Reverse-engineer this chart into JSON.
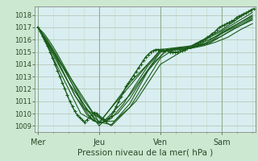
{
  "title": "",
  "xlabel": "Pression niveau de la mer( hPa )",
  "bg_color": "#cce8d0",
  "plot_bg_color": "#d8eef0",
  "grid_major_color": "#b8c8b8",
  "grid_minor_color": "#c8d8c8",
  "line_color": "#1a5c1a",
  "ylim": [
    1008.5,
    1018.7
  ],
  "xlim": [
    -0.05,
    3.55
  ],
  "yticks": [
    1009,
    1010,
    1011,
    1012,
    1013,
    1014,
    1015,
    1016,
    1017,
    1018
  ],
  "xtick_labels": [
    "Mer",
    "Jeu",
    "Ven",
    "Sam"
  ],
  "xtick_positions": [
    0,
    1,
    2,
    3
  ],
  "series": [
    [
      [
        0.0,
        1017.0
      ],
      [
        0.04,
        1016.7
      ],
      [
        0.08,
        1016.3
      ],
      [
        0.12,
        1015.9
      ],
      [
        0.16,
        1015.5
      ],
      [
        0.2,
        1015.0
      ],
      [
        0.24,
        1014.5
      ],
      [
        0.28,
        1014.0
      ],
      [
        0.32,
        1013.5
      ],
      [
        0.36,
        1013.0
      ],
      [
        0.4,
        1012.5
      ],
      [
        0.44,
        1012.0
      ],
      [
        0.48,
        1011.5
      ],
      [
        0.52,
        1011.0
      ],
      [
        0.56,
        1010.6
      ],
      [
        0.6,
        1010.2
      ],
      [
        0.64,
        1009.9
      ],
      [
        0.68,
        1009.7
      ],
      [
        0.72,
        1009.5
      ],
      [
        0.76,
        1009.3
      ],
      [
        0.8,
        1009.5
      ],
      [
        0.84,
        1009.7
      ],
      [
        0.88,
        1009.9
      ],
      [
        0.92,
        1010.1
      ],
      [
        0.96,
        1010.0
      ],
      [
        1.0,
        1009.8
      ],
      [
        1.04,
        1009.6
      ],
      [
        1.08,
        1009.5
      ],
      [
        1.12,
        1009.4
      ],
      [
        1.16,
        1009.6
      ],
      [
        1.2,
        1009.8
      ],
      [
        1.24,
        1010.2
      ],
      [
        1.28,
        1010.6
      ],
      [
        1.32,
        1011.0
      ],
      [
        1.36,
        1011.4
      ],
      [
        1.4,
        1011.8
      ],
      [
        1.44,
        1012.2
      ],
      [
        1.48,
        1012.5
      ],
      [
        1.52,
        1012.8
      ],
      [
        1.56,
        1013.1
      ],
      [
        1.6,
        1013.4
      ],
      [
        1.64,
        1013.7
      ],
      [
        1.68,
        1014.0
      ],
      [
        1.72,
        1014.3
      ],
      [
        1.76,
        1014.6
      ],
      [
        1.8,
        1014.8
      ],
      [
        1.84,
        1015.0
      ],
      [
        1.88,
        1015.1
      ],
      [
        1.92,
        1015.2
      ],
      [
        1.96,
        1015.2
      ],
      [
        2.0,
        1015.2
      ],
      [
        2.04,
        1015.2
      ],
      [
        2.08,
        1015.1
      ],
      [
        2.12,
        1015.1
      ],
      [
        2.16,
        1015.0
      ],
      [
        2.2,
        1015.0
      ],
      [
        2.24,
        1015.0
      ],
      [
        2.28,
        1015.0
      ],
      [
        2.32,
        1015.1
      ],
      [
        2.36,
        1015.1
      ],
      [
        2.4,
        1015.2
      ],
      [
        2.44,
        1015.3
      ],
      [
        2.48,
        1015.4
      ],
      [
        2.52,
        1015.5
      ],
      [
        2.56,
        1015.6
      ],
      [
        2.6,
        1015.7
      ],
      [
        2.64,
        1015.8
      ],
      [
        2.68,
        1015.9
      ],
      [
        2.72,
        1016.0
      ],
      [
        2.76,
        1016.2
      ],
      [
        2.8,
        1016.3
      ],
      [
        2.84,
        1016.5
      ],
      [
        2.88,
        1016.6
      ],
      [
        2.92,
        1016.8
      ],
      [
        2.96,
        1017.0
      ],
      [
        3.0,
        1017.1
      ],
      [
        3.04,
        1017.2
      ],
      [
        3.08,
        1017.3
      ],
      [
        3.12,
        1017.4
      ],
      [
        3.16,
        1017.5
      ],
      [
        3.2,
        1017.6
      ],
      [
        3.24,
        1017.8
      ],
      [
        3.28,
        1017.9
      ],
      [
        3.32,
        1018.0
      ],
      [
        3.36,
        1018.1
      ],
      [
        3.4,
        1018.2
      ],
      [
        3.44,
        1018.3
      ],
      [
        3.48,
        1018.4
      ],
      [
        3.52,
        1018.5
      ]
    ],
    [
      [
        0.0,
        1017.0
      ],
      [
        0.1,
        1016.5
      ],
      [
        0.2,
        1015.8
      ],
      [
        0.3,
        1015.0
      ],
      [
        0.5,
        1013.2
      ],
      [
        0.7,
        1011.4
      ],
      [
        0.9,
        1010.0
      ],
      [
        1.1,
        1009.5
      ],
      [
        1.3,
        1010.0
      ],
      [
        1.5,
        1011.2
      ],
      [
        1.7,
        1012.8
      ],
      [
        1.9,
        1014.2
      ],
      [
        2.1,
        1015.1
      ],
      [
        2.3,
        1015.2
      ],
      [
        2.5,
        1015.3
      ],
      [
        2.7,
        1015.5
      ],
      [
        2.9,
        1015.8
      ],
      [
        3.1,
        1016.2
      ],
      [
        3.3,
        1016.8
      ],
      [
        3.5,
        1017.3
      ]
    ],
    [
      [
        0.0,
        1017.0
      ],
      [
        0.15,
        1016.0
      ],
      [
        0.3,
        1014.8
      ],
      [
        0.5,
        1013.0
      ],
      [
        0.75,
        1010.5
      ],
      [
        1.0,
        1009.3
      ],
      [
        1.25,
        1009.4
      ],
      [
        1.5,
        1010.5
      ],
      [
        1.75,
        1012.5
      ],
      [
        2.0,
        1014.5
      ],
      [
        2.25,
        1015.3
      ],
      [
        2.5,
        1015.4
      ],
      [
        2.75,
        1015.7
      ],
      [
        3.0,
        1016.3
      ],
      [
        3.25,
        1017.0
      ],
      [
        3.5,
        1017.7
      ]
    ],
    [
      [
        0.0,
        1017.0
      ],
      [
        0.2,
        1015.5
      ],
      [
        0.4,
        1013.5
      ],
      [
        0.6,
        1011.5
      ],
      [
        0.8,
        1009.9
      ],
      [
        1.0,
        1009.2
      ],
      [
        1.2,
        1009.6
      ],
      [
        1.4,
        1010.8
      ],
      [
        1.6,
        1012.4
      ],
      [
        1.8,
        1013.9
      ],
      [
        2.0,
        1015.0
      ],
      [
        2.2,
        1015.3
      ],
      [
        2.5,
        1015.4
      ],
      [
        2.8,
        1015.8
      ],
      [
        3.0,
        1016.5
      ],
      [
        3.2,
        1017.0
      ],
      [
        3.5,
        1017.8
      ]
    ],
    [
      [
        0.0,
        1017.0
      ],
      [
        0.3,
        1014.5
      ],
      [
        0.6,
        1011.5
      ],
      [
        0.9,
        1009.4
      ],
      [
        1.2,
        1009.1
      ],
      [
        1.5,
        1010.8
      ],
      [
        1.8,
        1013.5
      ],
      [
        2.1,
        1015.2
      ],
      [
        2.4,
        1015.3
      ],
      [
        2.7,
        1015.6
      ],
      [
        3.0,
        1016.6
      ],
      [
        3.3,
        1017.4
      ],
      [
        3.5,
        1017.9
      ]
    ],
    [
      [
        0.0,
        1017.0
      ],
      [
        0.4,
        1013.8
      ],
      [
        0.8,
        1010.3
      ],
      [
        1.2,
        1009.0
      ],
      [
        1.6,
        1011.0
      ],
      [
        2.0,
        1014.0
      ],
      [
        2.4,
        1015.2
      ],
      [
        2.8,
        1015.7
      ],
      [
        3.2,
        1016.9
      ],
      [
        3.5,
        1017.6
      ]
    ],
    [
      [
        0.0,
        1017.0
      ],
      [
        0.5,
        1012.5
      ],
      [
        1.0,
        1009.0
      ],
      [
        1.5,
        1011.5
      ],
      [
        2.0,
        1015.0
      ],
      [
        2.5,
        1015.3
      ],
      [
        3.0,
        1016.5
      ],
      [
        3.5,
        1018.0
      ]
    ],
    [
      [
        0.0,
        1017.0
      ],
      [
        0.7,
        1010.0
      ],
      [
        1.0,
        1009.2
      ],
      [
        1.5,
        1012.5
      ],
      [
        2.0,
        1015.1
      ],
      [
        2.5,
        1015.4
      ],
      [
        3.0,
        1016.7
      ],
      [
        3.5,
        1018.2
      ]
    ],
    [
      [
        0.0,
        1017.0
      ],
      [
        1.0,
        1009.3
      ],
      [
        2.0,
        1015.2
      ],
      [
        2.5,
        1015.5
      ],
      [
        3.0,
        1016.8
      ],
      [
        3.5,
        1018.5
      ]
    ]
  ]
}
